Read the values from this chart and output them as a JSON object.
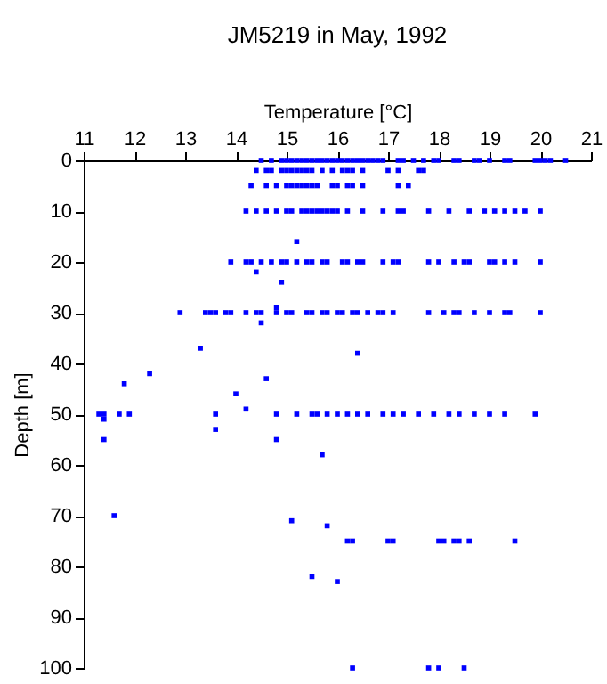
{
  "chart_data": {
    "type": "scatter",
    "title": "JM5219 in May, 1992",
    "xlabel": "Temperature [°C]",
    "ylabel": "Depth [m]",
    "color": "#0000ff",
    "marker": "square",
    "grid": false,
    "xlim": [
      11,
      21
    ],
    "xticks": [
      11,
      12,
      13,
      14,
      15,
      16,
      17,
      18,
      19,
      20,
      21
    ],
    "ylim": [
      100,
      0
    ],
    "yticks": [
      0,
      10,
      20,
      30,
      40,
      50,
      60,
      70,
      80,
      90,
      100
    ],
    "x": [
      14.5,
      14.7,
      14.9,
      15.0,
      15.1,
      15.2,
      15.3,
      15.4,
      15.5,
      15.6,
      15.7,
      15.8,
      15.9,
      16.0,
      16.1,
      16.2,
      16.3,
      16.4,
      16.5,
      16.6,
      16.7,
      16.8,
      16.9,
      17.2,
      17.3,
      17.5,
      17.7,
      17.9,
      18.0,
      18.3,
      18.4,
      18.7,
      18.8,
      19.0,
      19.3,
      19.4,
      19.9,
      20.0,
      20.1,
      20.2,
      20.5,
      14.4,
      14.6,
      14.7,
      14.9,
      15.0,
      15.1,
      15.2,
      15.3,
      15.4,
      15.5,
      15.7,
      15.9,
      16.1,
      16.2,
      16.3,
      16.5,
      17.0,
      17.2,
      17.6,
      17.7,
      14.3,
      14.6,
      14.8,
      15.0,
      15.1,
      15.2,
      15.3,
      15.4,
      15.5,
      15.6,
      15.9,
      16.0,
      16.2,
      16.3,
      16.5,
      17.2,
      17.4,
      14.2,
      14.4,
      14.6,
      14.8,
      15.0,
      15.1,
      15.3,
      15.4,
      15.5,
      15.6,
      15.7,
      15.8,
      15.9,
      16.0,
      16.2,
      16.5,
      16.9,
      17.2,
      17.3,
      17.8,
      18.2,
      18.6,
      18.9,
      19.1,
      19.3,
      19.5,
      19.7,
      20.0,
      13.9,
      14.2,
      14.3,
      14.5,
      14.7,
      14.9,
      15.0,
      15.2,
      15.4,
      15.5,
      15.7,
      15.8,
      16.1,
      16.2,
      16.4,
      16.5,
      16.9,
      17.1,
      17.2,
      17.8,
      18.0,
      18.3,
      18.5,
      18.6,
      19.0,
      19.1,
      19.3,
      19.5,
      20.0,
      12.9,
      13.4,
      13.5,
      13.6,
      13.8,
      13.9,
      14.2,
      14.4,
      14.5,
      14.8,
      15.0,
      15.1,
      15.4,
      15.5,
      15.7,
      15.8,
      16.0,
      16.1,
      16.3,
      16.4,
      16.6,
      16.8,
      16.9,
      17.1,
      17.8,
      18.1,
      18.3,
      18.4,
      18.7,
      19.0,
      19.3,
      19.4,
      20.0,
      15.2,
      14.4,
      14.9,
      14.8,
      14.5,
      13.3,
      16.4,
      12.3,
      14.6,
      11.8,
      14.0,
      14.2,
      11.3,
      11.4,
      11.7,
      11.9,
      13.6,
      14.8,
      15.2,
      15.5,
      15.6,
      15.8,
      16.0,
      16.2,
      16.4,
      16.6,
      16.9,
      17.1,
      17.3,
      17.6,
      17.9,
      18.2,
      18.4,
      18.7,
      19.0,
      19.3,
      19.9,
      11.4,
      13.6,
      11.4,
      14.8,
      15.7,
      11.6,
      15.1,
      15.8,
      16.2,
      16.3,
      17.0,
      17.1,
      18.0,
      18.1,
      18.3,
      18.4,
      18.6,
      19.5,
      15.5,
      16.0,
      16.3,
      17.8,
      18.0,
      18.5
    ],
    "values": [
      0,
      0,
      0,
      0,
      0,
      0,
      0,
      0,
      0,
      0,
      0,
      0,
      0,
      0,
      0,
      0,
      0,
      0,
      0,
      0,
      0,
      0,
      0,
      0,
      0,
      0,
      0,
      0,
      0,
      0,
      0,
      0,
      0,
      0,
      0,
      0,
      0,
      0,
      0,
      0,
      0,
      2,
      2,
      2,
      2,
      2,
      2,
      2,
      2,
      2,
      2,
      2,
      2,
      2,
      2,
      2,
      2,
      2,
      2,
      2,
      2,
      5,
      5,
      5,
      5,
      5,
      5,
      5,
      5,
      5,
      5,
      5,
      5,
      5,
      5,
      5,
      5,
      5,
      10,
      10,
      10,
      10,
      10,
      10,
      10,
      10,
      10,
      10,
      10,
      10,
      10,
      10,
      10,
      10,
      10,
      10,
      10,
      10,
      10,
      10,
      10,
      10,
      10,
      10,
      10,
      10,
      20,
      20,
      20,
      20,
      20,
      20,
      20,
      20,
      20,
      20,
      20,
      20,
      20,
      20,
      20,
      20,
      20,
      20,
      20,
      20,
      20,
      20,
      20,
      20,
      20,
      20,
      20,
      20,
      20,
      30,
      30,
      30,
      30,
      30,
      30,
      30,
      30,
      30,
      30,
      30,
      30,
      30,
      30,
      30,
      30,
      30,
      30,
      30,
      30,
      30,
      30,
      30,
      30,
      30,
      30,
      30,
      30,
      30,
      30,
      30,
      30,
      30,
      16,
      22,
      24,
      29,
      32,
      37,
      38,
      42,
      43,
      44,
      46,
      49,
      50,
      50,
      50,
      50,
      50,
      50,
      50,
      50,
      50,
      50,
      50,
      50,
      50,
      50,
      50,
      50,
      50,
      50,
      50,
      50,
      50,
      50,
      50,
      50,
      50,
      51,
      53,
      55,
      55,
      58,
      70,
      71,
      72,
      75,
      75,
      75,
      75,
      75,
      75,
      75,
      75,
      75,
      75,
      82,
      83,
      100,
      100,
      100,
      100
    ]
  }
}
